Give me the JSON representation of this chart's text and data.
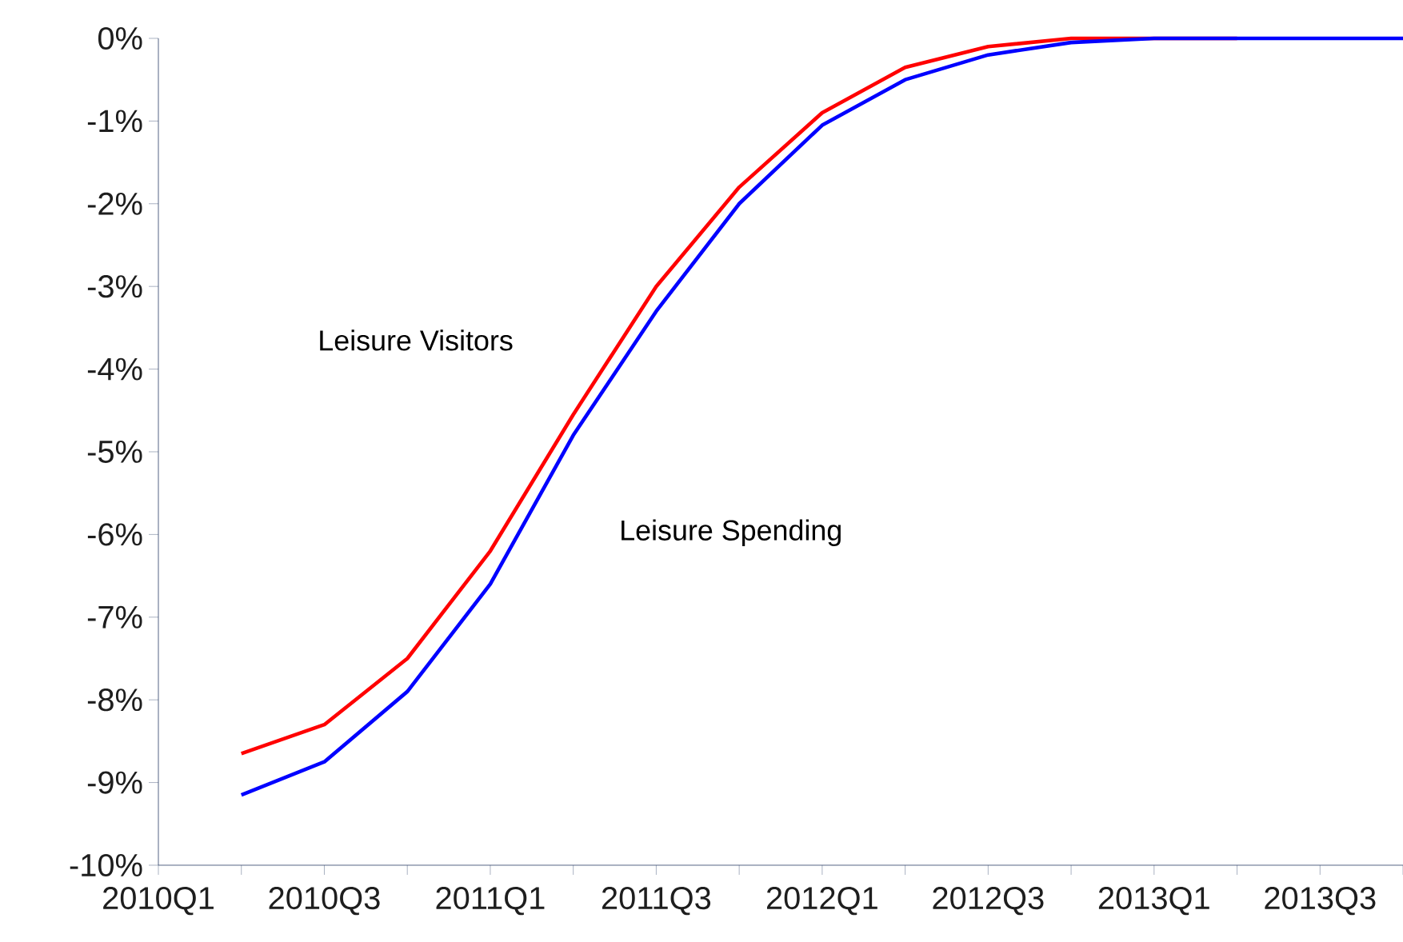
{
  "chart_data": {
    "type": "line",
    "categories": [
      "2010Q1",
      null,
      "2010Q3",
      null,
      "2011Q1",
      null,
      "2011Q3",
      null,
      "2012Q1",
      null,
      "2012Q3",
      null,
      "2013Q1",
      null,
      "2013Q3",
      null
    ],
    "series": [
      {
        "name": "Leisure Visitors",
        "color": "#ff0000",
        "values": [
          null,
          -8.65,
          -8.3,
          -7.5,
          -6.2,
          -4.55,
          -3.0,
          -1.8,
          -0.9,
          -0.35,
          -0.1,
          0,
          0,
          0,
          null,
          null
        ]
      },
      {
        "name": "Leisure Spending",
        "color": "#0000ff",
        "values": [
          null,
          -9.15,
          -8.75,
          -7.9,
          -6.6,
          -4.8,
          -3.3,
          -2.0,
          -1.05,
          -0.5,
          -0.2,
          -0.05,
          0,
          0,
          0,
          0
        ]
      }
    ],
    "ylim": [
      -10,
      0
    ],
    "yticks": [
      {
        "value": -10,
        "label": "-10%"
      },
      {
        "value": -9,
        "label": "-9%"
      },
      {
        "value": -8,
        "label": "-8%"
      },
      {
        "value": -7,
        "label": "-7%"
      },
      {
        "value": -6,
        "label": "-6%"
      },
      {
        "value": -5,
        "label": "-5%"
      },
      {
        "value": -4,
        "label": "-4%"
      },
      {
        "value": -3,
        "label": "-3%"
      },
      {
        "value": -2,
        "label": "-2%"
      },
      {
        "value": -1,
        "label": "-1%"
      },
      {
        "value": 0,
        "label": "0%"
      }
    ],
    "grid": false
  }
}
